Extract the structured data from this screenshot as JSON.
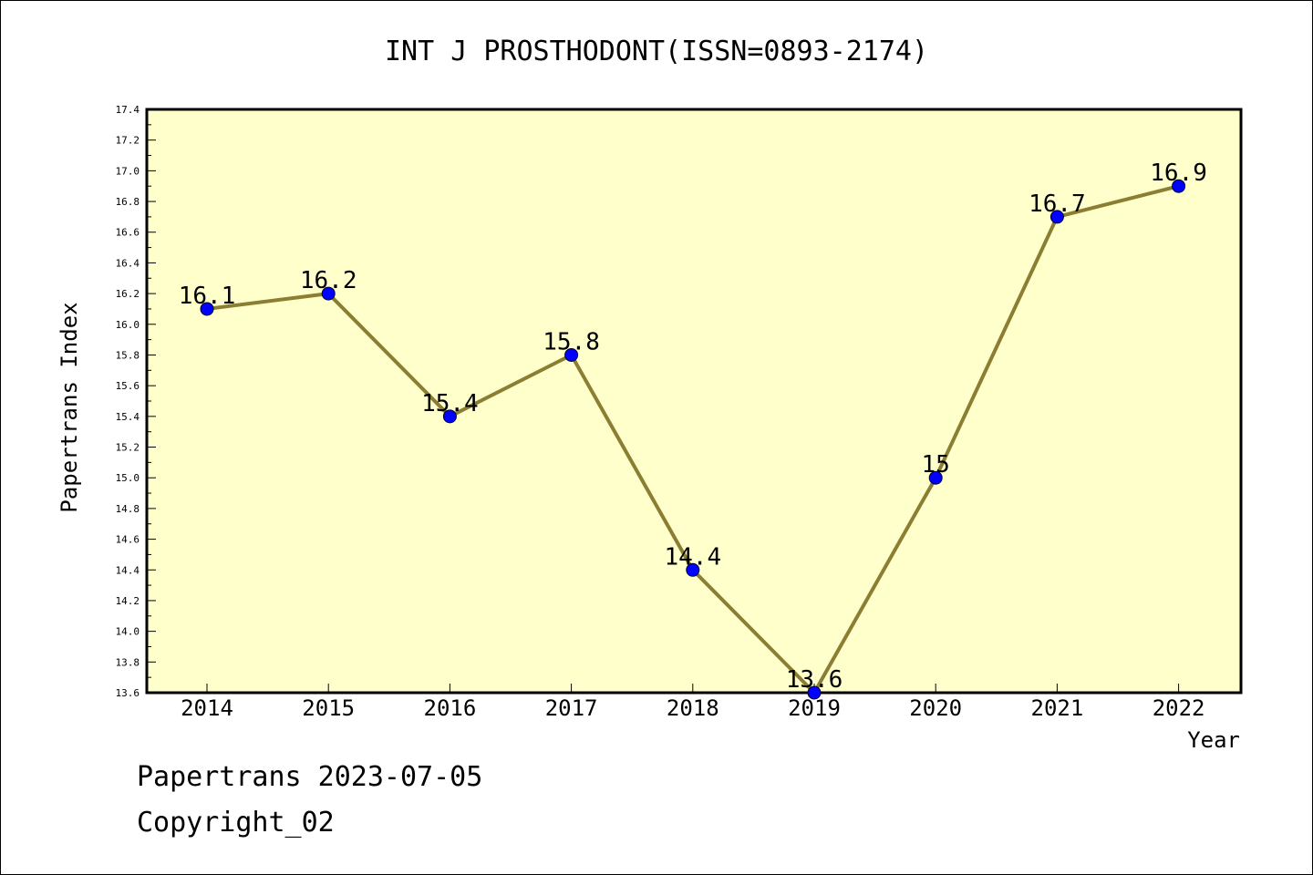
{
  "chart_data": {
    "type": "line",
    "title": "INT J PROSTHODONT(ISSN=0893-2174)",
    "xlabel": "Year",
    "ylabel": "Papertrans Index",
    "categories": [
      "2014",
      "2015",
      "2016",
      "2017",
      "2018",
      "2019",
      "2020",
      "2021",
      "2022"
    ],
    "values": [
      16.1,
      16.2,
      15.4,
      15.8,
      14.4,
      13.6,
      15.0,
      16.7,
      16.9
    ],
    "data_labels": [
      "16.1",
      "16.2",
      "15.4",
      "15.8",
      "14.4",
      "13.6",
      "15",
      "16.7",
      "16.9"
    ],
    "ylim": [
      13.6,
      17.4
    ],
    "yticks": [
      "13.6",
      "13.8",
      "14.0",
      "14.2",
      "14.4",
      "14.6",
      "14.8",
      "15.0",
      "15.2",
      "15.4",
      "15.6",
      "15.8",
      "16.0",
      "16.2",
      "16.4",
      "16.6",
      "16.8",
      "17.0",
      "17.2",
      "17.4"
    ],
    "grid": false,
    "colors": {
      "plot_background": "#ffffcc",
      "line": "#8b7d32",
      "marker": "#0000ff"
    }
  },
  "footer": {
    "line1": "Papertrans 2023-07-05",
    "line2": "Copyright_02"
  }
}
